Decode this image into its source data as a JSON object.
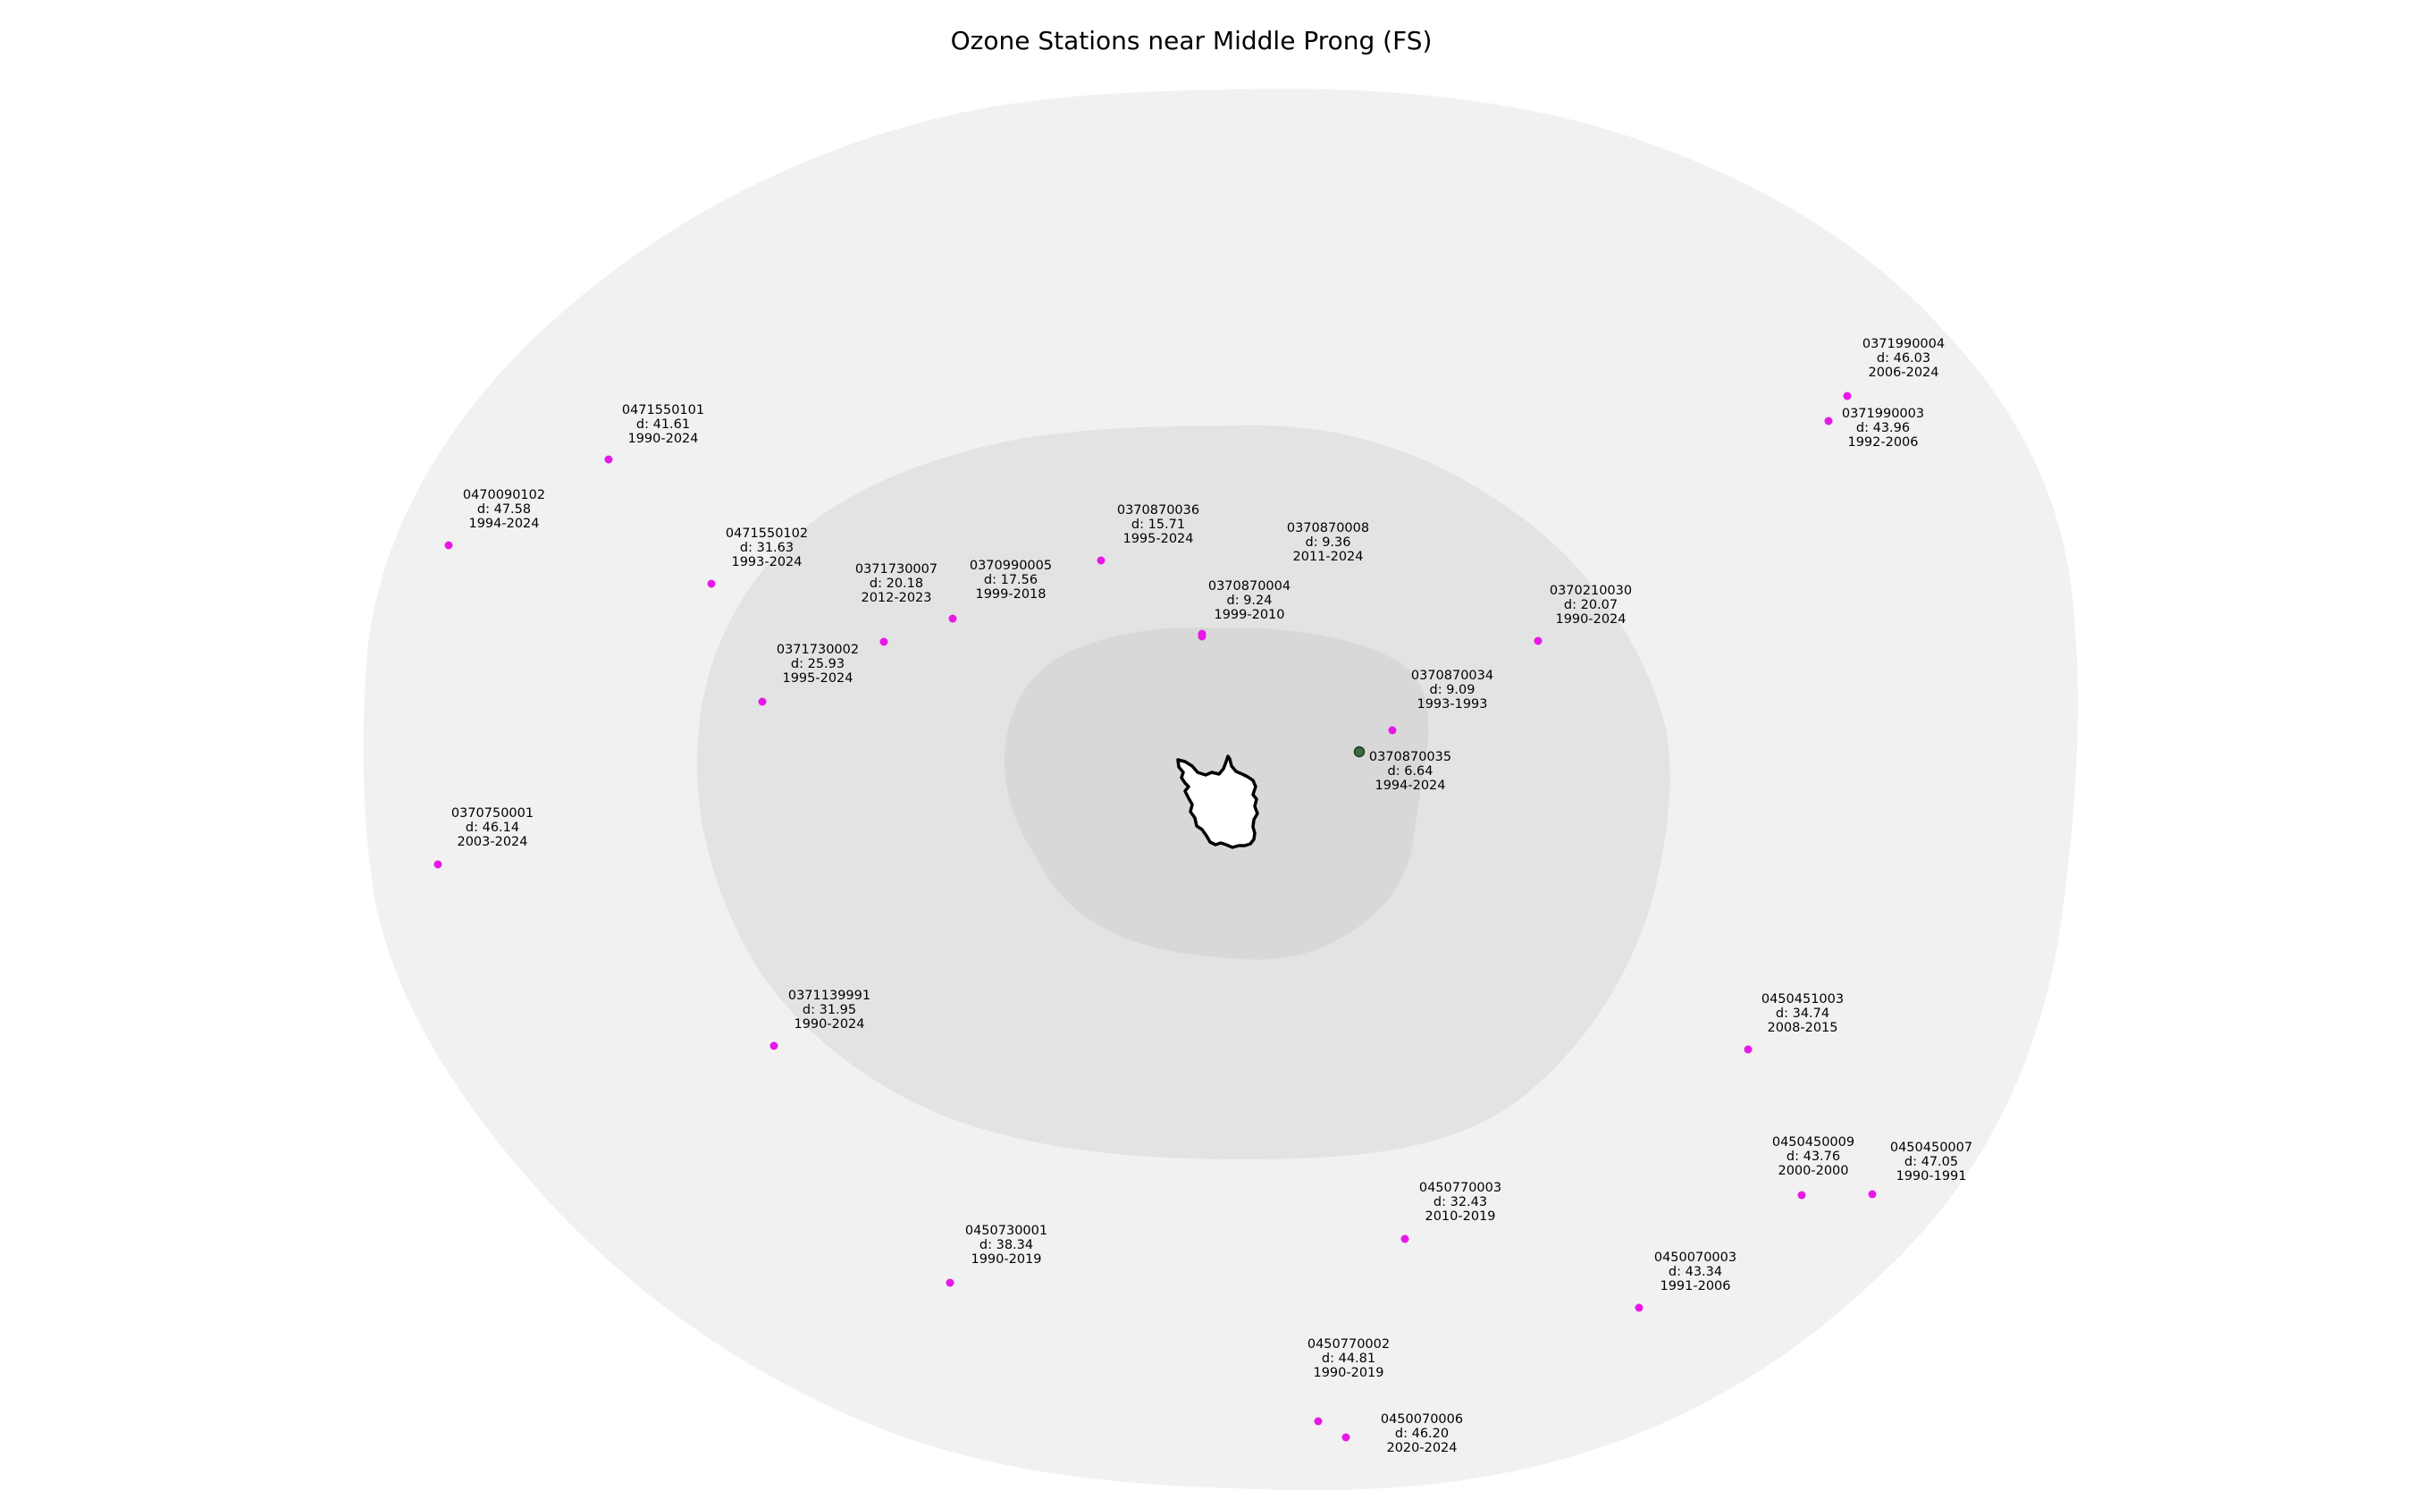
{
  "map": {
    "title": "Ozone Stations near Middle Prong (FS)",
    "colors": {
      "ring_outer": "#f1f1f1",
      "ring_middle": "#e3e3e3",
      "ring_inner": "#d8d8d8",
      "area_fill": "#ffffff",
      "area_outline": "#000000",
      "station_default": "#e619e6",
      "station_nearest": "#3d6b45",
      "station_nearest_outline": "#1e3b22"
    },
    "area": {
      "name": "Middle Prong (FS)"
    },
    "stations": [
      {
        "id": "0370870035",
        "distance": "d: 6.64",
        "years": "1994-2024",
        "nearest": true
      },
      {
        "id": "0370870034",
        "distance": "d: 9.09",
        "years": "1993-1993"
      },
      {
        "id": "0370870004",
        "distance": "d: 9.24",
        "years": "1999-2010"
      },
      {
        "id": "0370870008",
        "distance": "d: 9.36",
        "years": "2011-2024"
      },
      {
        "id": "0370870036",
        "distance": "d: 15.71",
        "years": "1995-2024"
      },
      {
        "id": "0370990005",
        "distance": "d: 17.56",
        "years": "1999-2018"
      },
      {
        "id": "0370210030",
        "distance": "d: 20.07",
        "years": "1990-2024"
      },
      {
        "id": "0371730007",
        "distance": "d: 20.18",
        "years": "2012-2023"
      },
      {
        "id": "0371730002",
        "distance": "d: 25.93",
        "years": "1995-2024"
      },
      {
        "id": "0471550102",
        "distance": "d: 31.63",
        "years": "1993-2024"
      },
      {
        "id": "0371139991",
        "distance": "d: 31.95",
        "years": "1990-2024"
      },
      {
        "id": "0450770003",
        "distance": "d: 32.43",
        "years": "2010-2019"
      },
      {
        "id": "0450451003",
        "distance": "d: 34.74",
        "years": "2008-2015"
      },
      {
        "id": "0450730001",
        "distance": "d: 38.34",
        "years": "1990-2019"
      },
      {
        "id": "0471550101",
        "distance": "d: 41.61",
        "years": "1990-2024"
      },
      {
        "id": "0450070003",
        "distance": "d: 43.34",
        "years": "1991-2006"
      },
      {
        "id": "0450450009",
        "distance": "d: 43.76",
        "years": "2000-2000"
      },
      {
        "id": "0371990003",
        "distance": "d: 43.96",
        "years": "1992-2006"
      },
      {
        "id": "0450770002",
        "distance": "d: 44.81",
        "years": "1990-2019"
      },
      {
        "id": "0371990004",
        "distance": "d: 46.03",
        "years": "2006-2024"
      },
      {
        "id": "0370750001",
        "distance": "d: 46.14",
        "years": "2003-2024"
      },
      {
        "id": "0450070006",
        "distance": "d: 46.20",
        "years": "2020-2024"
      },
      {
        "id": "0450450007",
        "distance": "d: 47.05",
        "years": "1990-1991"
      },
      {
        "id": "0470090102",
        "distance": "d: 47.58",
        "years": "1994-2024"
      }
    ]
  }
}
